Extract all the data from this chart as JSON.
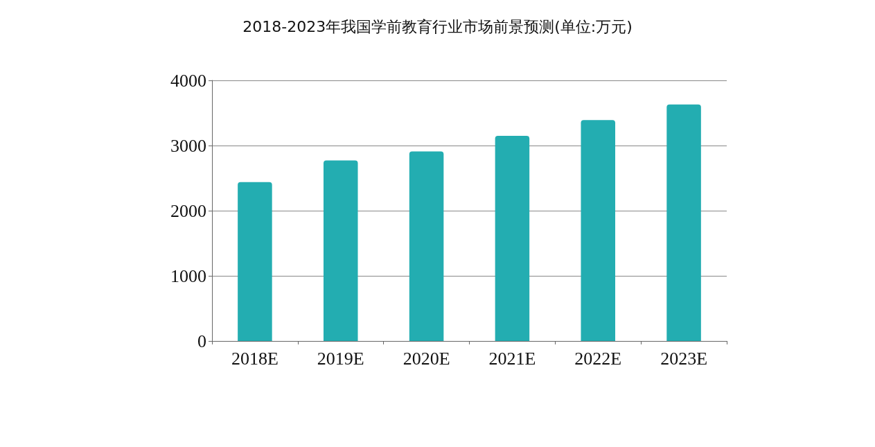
{
  "chart_data": {
    "type": "bar",
    "title": "2018-2023年我国学前教育行业市场前景预测(单位:万元)",
    "categories": [
      "2018E",
      "2019E",
      "2020E",
      "2021E",
      "2022E",
      "2023E"
    ],
    "values": [
      2440,
      2770,
      2910,
      3150,
      3390,
      3630
    ],
    "color": "#23adb1",
    "ylim": [
      0,
      4000
    ],
    "yticks": [
      0,
      1000,
      2000,
      3000,
      4000
    ],
    "grid": "y"
  }
}
